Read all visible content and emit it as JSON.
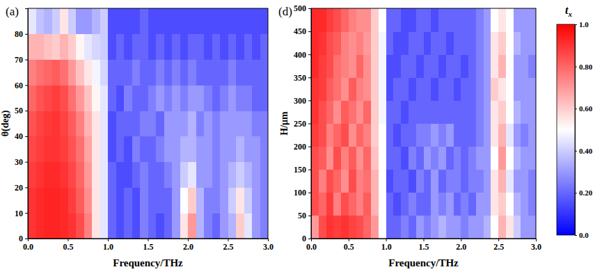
{
  "chart_data": [
    {
      "type": "heatmap",
      "title": "(a)",
      "x_label": "Frequency/THz",
      "y_label": "θ(deg)",
      "xlim": [
        0,
        3
      ],
      "ylim": [
        0,
        90
      ],
      "xticks": [
        {
          "value": 0,
          "label": "0.0"
        },
        0.5,
        {
          "value": 1,
          "label": "1.0"
        },
        1.5,
        {
          "value": 2,
          "label": "2.0"
        },
        2.5,
        {
          "value": 3,
          "label": "3.0"
        }
      ],
      "yticks": [
        0,
        10,
        20,
        30,
        40,
        50,
        60,
        70,
        80
      ],
      "x_bins": [
        0,
        0.1,
        0.2,
        0.3,
        0.4,
        0.5,
        0.6,
        0.7,
        0.8,
        0.9,
        1.0,
        1.1,
        1.2,
        1.3,
        1.4,
        1.5,
        1.6,
        1.7,
        1.8,
        1.9,
        2.0,
        2.1,
        2.2,
        2.3,
        2.4,
        2.5,
        2.6,
        2.7,
        2.8,
        2.9,
        3.0
      ],
      "y_bins": [
        0,
        10,
        20,
        30,
        40,
        50,
        60,
        70,
        80,
        90
      ],
      "z": [
        [
          0.9,
          0.92,
          0.93,
          0.93,
          0.92,
          0.9,
          0.85,
          0.75,
          0.55,
          0.45,
          0.2,
          0.15,
          0.2,
          0.15,
          0.25,
          0.2,
          0.15,
          0.2,
          0.3,
          0.55,
          0.7,
          0.35,
          0.25,
          0.2,
          0.3,
          0.35,
          0.6,
          0.45,
          0.3,
          0.25
        ],
        [
          0.9,
          0.92,
          0.93,
          0.93,
          0.92,
          0.88,
          0.82,
          0.72,
          0.55,
          0.45,
          0.2,
          0.15,
          0.2,
          0.15,
          0.25,
          0.2,
          0.2,
          0.2,
          0.3,
          0.5,
          0.6,
          0.35,
          0.25,
          0.25,
          0.3,
          0.4,
          0.55,
          0.4,
          0.3,
          0.25
        ],
        [
          0.88,
          0.9,
          0.92,
          0.92,
          0.9,
          0.86,
          0.8,
          0.7,
          0.55,
          0.45,
          0.2,
          0.15,
          0.15,
          0.2,
          0.25,
          0.2,
          0.2,
          0.25,
          0.3,
          0.4,
          0.45,
          0.3,
          0.3,
          0.25,
          0.3,
          0.35,
          0.4,
          0.35,
          0.3,
          0.25
        ],
        [
          0.86,
          0.88,
          0.9,
          0.9,
          0.88,
          0.84,
          0.78,
          0.68,
          0.55,
          0.45,
          0.15,
          0.2,
          0.15,
          0.25,
          0.2,
          0.2,
          0.25,
          0.3,
          0.3,
          0.35,
          0.35,
          0.3,
          0.3,
          0.25,
          0.3,
          0.3,
          0.35,
          0.3,
          0.3,
          0.25
        ],
        [
          0.84,
          0.87,
          0.89,
          0.9,
          0.87,
          0.82,
          0.75,
          0.65,
          0.55,
          0.45,
          0.15,
          0.2,
          0.2,
          0.2,
          0.25,
          0.25,
          0.2,
          0.3,
          0.3,
          0.3,
          0.35,
          0.25,
          0.3,
          0.25,
          0.3,
          0.3,
          0.3,
          0.3,
          0.25,
          0.25
        ],
        [
          0.8,
          0.84,
          0.86,
          0.88,
          0.85,
          0.78,
          0.7,
          0.62,
          0.52,
          0.45,
          0.2,
          0.15,
          0.25,
          0.2,
          0.2,
          0.25,
          0.3,
          0.25,
          0.3,
          0.25,
          0.3,
          0.3,
          0.25,
          0.2,
          0.25,
          0.3,
          0.25,
          0.25,
          0.2,
          0.2
        ],
        [
          0.75,
          0.78,
          0.8,
          0.82,
          0.78,
          0.7,
          0.62,
          0.55,
          0.48,
          0.42,
          0.2,
          0.2,
          0.2,
          0.25,
          0.2,
          0.2,
          0.25,
          0.2,
          0.25,
          0.2,
          0.25,
          0.2,
          0.2,
          0.2,
          0.2,
          0.25,
          0.2,
          0.2,
          0.2,
          0.2
        ],
        [
          0.65,
          0.65,
          0.62,
          0.6,
          0.65,
          0.6,
          0.52,
          0.45,
          0.42,
          0.4,
          0.15,
          0.2,
          0.15,
          0.2,
          0.2,
          0.15,
          0.2,
          0.15,
          0.2,
          0.15,
          0.2,
          0.2,
          0.15,
          0.2,
          0.15,
          0.2,
          0.15,
          0.2,
          0.15,
          0.2
        ],
        [
          0.45,
          0.38,
          0.35,
          0.4,
          0.55,
          0.4,
          0.3,
          0.3,
          0.35,
          0.4,
          0.15,
          0.15,
          0.15,
          0.15,
          0.2,
          0.15,
          0.15,
          0.15,
          0.15,
          0.15,
          0.15,
          0.15,
          0.15,
          0.15,
          0.15,
          0.15,
          0.15,
          0.15,
          0.15,
          0.15
        ]
      ]
    },
    {
      "type": "heatmap",
      "title": "(d)",
      "x_label": "Frequency/THz",
      "y_label": "H/μm",
      "xlim": [
        0,
        3
      ],
      "ylim": [
        0,
        500
      ],
      "xticks": [
        {
          "value": 0,
          "label": "0.0"
        },
        0.5,
        {
          "value": 1,
          "label": "1.0"
        },
        1.5,
        {
          "value": 2,
          "label": "2.0"
        },
        2.5,
        {
          "value": 3,
          "label": "3.0"
        }
      ],
      "yticks": [
        0,
        50,
        100,
        150,
        200,
        250,
        300,
        350,
        400,
        450,
        500
      ],
      "x_bins": [
        0,
        0.1,
        0.2,
        0.3,
        0.4,
        0.5,
        0.6,
        0.7,
        0.8,
        0.9,
        1.0,
        1.1,
        1.2,
        1.3,
        1.4,
        1.5,
        1.6,
        1.7,
        1.8,
        1.9,
        2.0,
        2.1,
        2.2,
        2.3,
        2.4,
        2.5,
        2.6,
        2.7,
        2.8,
        2.9,
        3.0
      ],
      "y_bins": [
        0,
        50,
        100,
        150,
        200,
        250,
        300,
        350,
        400,
        450,
        500
      ],
      "z": [
        [
          0.7,
          0.85,
          0.9,
          0.88,
          0.9,
          0.87,
          0.85,
          0.8,
          0.7,
          0.5,
          0.2,
          0.2,
          0.25,
          0.2,
          0.3,
          0.25,
          0.3,
          0.35,
          0.3,
          0.3,
          0.25,
          0.3,
          0.3,
          0.35,
          0.5,
          0.65,
          0.55,
          0.4,
          0.3,
          0.3
        ],
        [
          0.85,
          0.8,
          0.88,
          0.75,
          0.85,
          0.8,
          0.75,
          0.82,
          0.65,
          0.5,
          0.2,
          0.15,
          0.2,
          0.25,
          0.2,
          0.2,
          0.3,
          0.25,
          0.3,
          0.2,
          0.25,
          0.2,
          0.3,
          0.3,
          0.55,
          0.6,
          0.5,
          0.35,
          0.3,
          0.25
        ],
        [
          0.85,
          0.75,
          0.85,
          0.8,
          0.72,
          0.85,
          0.75,
          0.78,
          0.65,
          0.5,
          0.15,
          0.2,
          0.2,
          0.15,
          0.25,
          0.2,
          0.3,
          0.2,
          0.25,
          0.25,
          0.2,
          0.25,
          0.25,
          0.3,
          0.55,
          0.65,
          0.45,
          0.3,
          0.3,
          0.25
        ],
        [
          0.85,
          0.82,
          0.72,
          0.85,
          0.75,
          0.82,
          0.72,
          0.8,
          0.62,
          0.5,
          0.2,
          0.2,
          0.15,
          0.25,
          0.2,
          0.3,
          0.25,
          0.3,
          0.2,
          0.25,
          0.2,
          0.25,
          0.3,
          0.3,
          0.5,
          0.7,
          0.5,
          0.35,
          0.3,
          0.3
        ],
        [
          0.88,
          0.85,
          0.75,
          0.8,
          0.85,
          0.72,
          0.8,
          0.75,
          0.6,
          0.5,
          0.2,
          0.15,
          0.2,
          0.2,
          0.25,
          0.25,
          0.3,
          0.25,
          0.3,
          0.2,
          0.2,
          0.2,
          0.25,
          0.3,
          0.55,
          0.65,
          0.45,
          0.3,
          0.25,
          0.3
        ],
        [
          0.9,
          0.85,
          0.8,
          0.72,
          0.82,
          0.78,
          0.72,
          0.8,
          0.6,
          0.48,
          0.2,
          0.2,
          0.15,
          0.2,
          0.2,
          0.2,
          0.2,
          0.2,
          0.2,
          0.2,
          0.2,
          0.2,
          0.25,
          0.3,
          0.55,
          0.6,
          0.5,
          0.35,
          0.3,
          0.3
        ],
        [
          0.9,
          0.88,
          0.82,
          0.78,
          0.72,
          0.82,
          0.75,
          0.72,
          0.6,
          0.48,
          0.15,
          0.2,
          0.2,
          0.15,
          0.2,
          0.2,
          0.15,
          0.2,
          0.2,
          0.15,
          0.2,
          0.2,
          0.25,
          0.3,
          0.6,
          0.55,
          0.5,
          0.3,
          0.3,
          0.3
        ],
        [
          0.92,
          0.88,
          0.85,
          0.78,
          0.75,
          0.72,
          0.8,
          0.72,
          0.6,
          0.48,
          0.15,
          0.15,
          0.2,
          0.2,
          0.15,
          0.2,
          0.2,
          0.15,
          0.2,
          0.2,
          0.15,
          0.2,
          0.25,
          0.3,
          0.55,
          0.65,
          0.5,
          0.3,
          0.3,
          0.25
        ],
        [
          0.92,
          0.9,
          0.85,
          0.82,
          0.75,
          0.72,
          0.75,
          0.7,
          0.6,
          0.48,
          0.2,
          0.15,
          0.15,
          0.2,
          0.2,
          0.15,
          0.2,
          0.2,
          0.15,
          0.2,
          0.2,
          0.2,
          0.25,
          0.3,
          0.55,
          0.6,
          0.5,
          0.35,
          0.3,
          0.3
        ],
        [
          0.92,
          0.92,
          0.88,
          0.85,
          0.8,
          0.75,
          0.72,
          0.72,
          0.6,
          0.5,
          0.2,
          0.2,
          0.15,
          0.15,
          0.2,
          0.2,
          0.15,
          0.2,
          0.2,
          0.2,
          0.2,
          0.2,
          0.25,
          0.3,
          0.5,
          0.55,
          0.5,
          0.3,
          0.3,
          0.3
        ]
      ],
      "colorbar": {
        "title": "t",
        "title_subscript": "x",
        "range": [
          0,
          1
        ],
        "ticks": [
          {
            "value": 0,
            "label": "0.0"
          },
          {
            "value": 0.2,
            "label": "0.20"
          },
          {
            "value": 0.4,
            "label": "0.40"
          },
          {
            "value": 0.6,
            "label": "0.60"
          },
          {
            "value": 0.8,
            "label": "0.80"
          },
          {
            "value": 1,
            "label": "1.0"
          }
        ],
        "colors": [
          "#0000ff",
          "#ffffff",
          "#ff0000"
        ]
      }
    }
  ]
}
